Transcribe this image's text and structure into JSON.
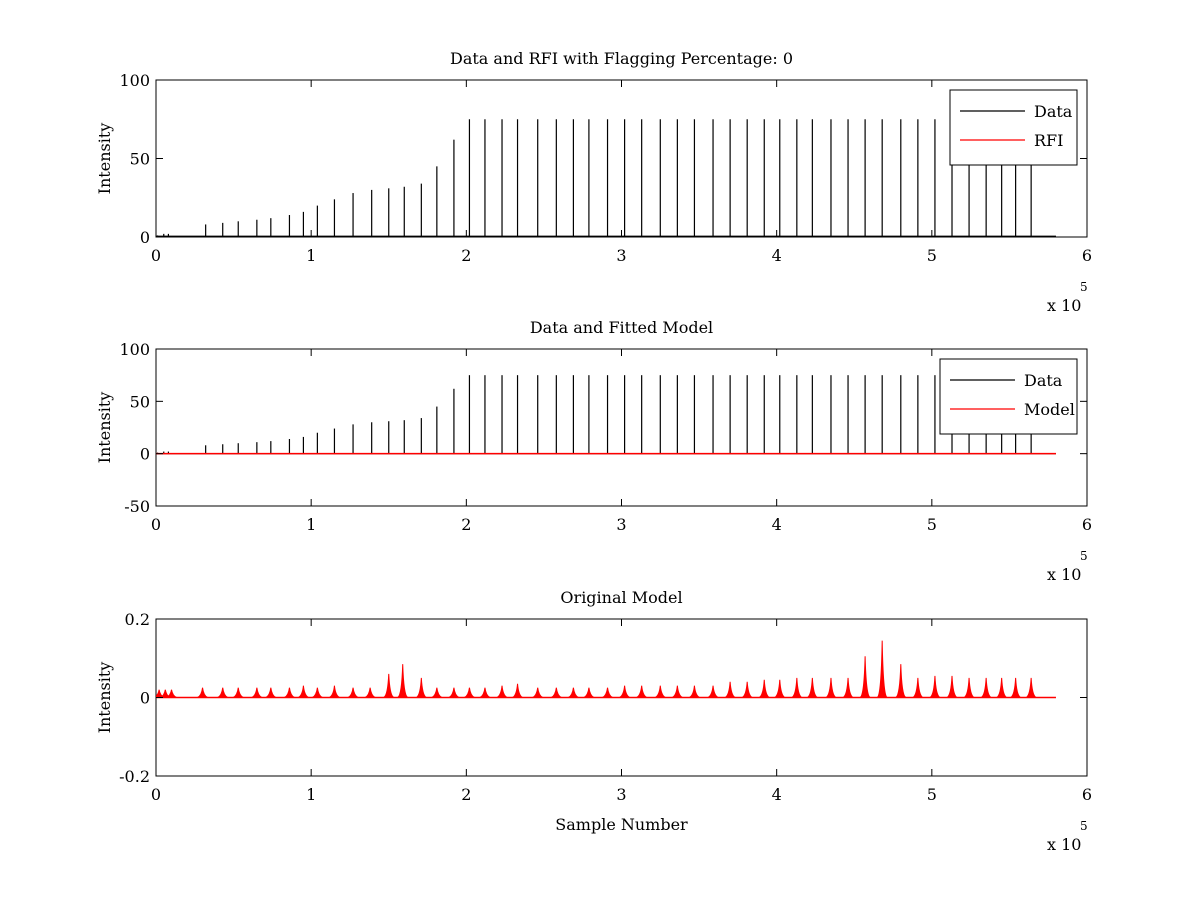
{
  "chart_data": [
    {
      "type": "line",
      "title": "Data and RFI with Flagging Percentage: 0",
      "xlabel": "",
      "ylabel": "Intensity",
      "xlim": [
        0,
        6
      ],
      "ylim": [
        0,
        100
      ],
      "xticks": [
        "0",
        "1",
        "2",
        "3",
        "4",
        "5",
        "6"
      ],
      "yticks": [
        "0",
        "50",
        "100"
      ],
      "ytick_values": [
        0,
        50,
        100
      ],
      "x_multiplier": {
        "text": "x 10",
        "exponent": "5"
      },
      "legend": {
        "position": "top-right",
        "entries": [
          {
            "label": "Data",
            "color": "#000000"
          },
          {
            "label": "RFI",
            "color": "#ff0000"
          }
        ]
      },
      "series": [
        {
          "name": "Data",
          "color": "#000000",
          "spikes": {
            "x": [
              0.01,
              0.05,
              0.08,
              0.32,
              0.43,
              0.53,
              0.65,
              0.74,
              0.86,
              0.95,
              1.04,
              1.15,
              1.27,
              1.39,
              1.5,
              1.6,
              1.71,
              1.81,
              1.92,
              2.02,
              2.12,
              2.23,
              2.33,
              2.46,
              2.58,
              2.69,
              2.79,
              2.91,
              3.02,
              3.13,
              3.25,
              3.36,
              3.47,
              3.59,
              3.7,
              3.81,
              3.92,
              4.02,
              4.13,
              4.23,
              4.35,
              4.46,
              4.57,
              4.68,
              4.8,
              4.91,
              5.02,
              5.13,
              5.24,
              5.35,
              5.45,
              5.54,
              5.64
            ],
            "y": [
              1,
              2,
              2,
              8,
              9,
              10,
              11,
              12,
              14,
              16,
              20,
              24,
              28,
              30,
              31,
              32,
              34,
              45,
              62,
              75,
              75,
              75,
              75,
              75,
              75,
              75,
              75,
              75,
              75,
              75,
              75,
              75,
              75,
              75,
              75,
              75,
              75,
              75,
              75,
              75,
              75,
              75,
              75,
              75,
              75,
              75,
              75,
              75,
              75,
              75,
              75,
              75,
              75
            ]
          },
          "baseline": {
            "x": [
              0,
              5.8
            ],
            "y": [
              0.5,
              0.5
            ]
          }
        },
        {
          "name": "RFI",
          "color": "#ff0000",
          "values": []
        }
      ]
    },
    {
      "type": "line",
      "title": "Data and Fitted Model",
      "xlabel": "",
      "ylabel": "Intensity",
      "xlim": [
        0,
        6
      ],
      "ylim": [
        -50,
        100
      ],
      "xticks": [
        "0",
        "1",
        "2",
        "3",
        "4",
        "5",
        "6"
      ],
      "yticks": [
        "-50",
        "0",
        "50",
        "100"
      ],
      "ytick_values": [
        -50,
        0,
        50,
        100
      ],
      "x_multiplier": {
        "text": "x 10",
        "exponent": "5"
      },
      "legend": {
        "position": "top-right",
        "entries": [
          {
            "label": "Data",
            "color": "#000000"
          },
          {
            "label": "Model",
            "color": "#ff0000"
          }
        ]
      },
      "series": [
        {
          "name": "Data",
          "color": "#000000",
          "spikes": {
            "x": [
              0.01,
              0.05,
              0.08,
              0.32,
              0.43,
              0.53,
              0.65,
              0.74,
              0.86,
              0.95,
              1.04,
              1.15,
              1.27,
              1.39,
              1.5,
              1.6,
              1.71,
              1.81,
              1.92,
              2.02,
              2.12,
              2.23,
              2.33,
              2.46,
              2.58,
              2.69,
              2.79,
              2.91,
              3.02,
              3.13,
              3.25,
              3.36,
              3.47,
              3.59,
              3.7,
              3.81,
              3.92,
              4.02,
              4.13,
              4.23,
              4.35,
              4.46,
              4.57,
              4.68,
              4.8,
              4.91,
              5.02,
              5.13,
              5.24,
              5.35,
              5.45,
              5.54,
              5.64
            ],
            "y": [
              1,
              2,
              2,
              8,
              9,
              10,
              11,
              12,
              14,
              16,
              20,
              24,
              28,
              30,
              31,
              32,
              34,
              45,
              62,
              75,
              75,
              75,
              75,
              75,
              75,
              75,
              75,
              75,
              75,
              75,
              75,
              75,
              75,
              75,
              75,
              75,
              75,
              75,
              75,
              75,
              75,
              75,
              75,
              75,
              75,
              75,
              75,
              75,
              75,
              75,
              75,
              75,
              75
            ]
          },
          "baseline": {
            "x": [
              0,
              5.8
            ],
            "y": [
              0,
              0
            ]
          }
        },
        {
          "name": "Model",
          "color": "#ff0000",
          "baseline": {
            "x": [
              0,
              5.8
            ],
            "y": [
              0,
              0
            ]
          }
        }
      ]
    },
    {
      "type": "line",
      "title": "Original Model",
      "xlabel": "Sample Number",
      "ylabel": "Intensity",
      "xlim": [
        0,
        6
      ],
      "ylim": [
        -0.2,
        0.2
      ],
      "xticks": [
        "0",
        "1",
        "2",
        "3",
        "4",
        "5",
        "6"
      ],
      "yticks": [
        "-0.2",
        "0",
        "0.2"
      ],
      "ytick_values": [
        -0.2,
        0,
        0.2
      ],
      "x_multiplier": {
        "text": "x 10",
        "exponent": "5"
      },
      "series": [
        {
          "name": "",
          "color": "#ff0000",
          "bumps": {
            "x": [
              0.02,
              0.06,
              0.1,
              0.3,
              0.43,
              0.53,
              0.65,
              0.74,
              0.86,
              0.95,
              1.04,
              1.15,
              1.27,
              1.38,
              1.5,
              1.59,
              1.71,
              1.81,
              1.92,
              2.02,
              2.12,
              2.23,
              2.33,
              2.46,
              2.58,
              2.69,
              2.79,
              2.91,
              3.02,
              3.13,
              3.25,
              3.36,
              3.47,
              3.59,
              3.7,
              3.81,
              3.92,
              4.02,
              4.13,
              4.23,
              4.35,
              4.46,
              4.57,
              4.68,
              4.8,
              4.91,
              5.02,
              5.13,
              5.24,
              5.35,
              5.45,
              5.54,
              5.64
            ],
            "y": [
              0.02,
              0.02,
              0.02,
              0.025,
              0.025,
              0.025,
              0.025,
              0.025,
              0.025,
              0.03,
              0.025,
              0.03,
              0.025,
              0.025,
              0.06,
              0.085,
              0.05,
              0.025,
              0.025,
              0.025,
              0.025,
              0.03,
              0.035,
              0.025,
              0.025,
              0.025,
              0.025,
              0.025,
              0.03,
              0.03,
              0.03,
              0.03,
              0.03,
              0.03,
              0.04,
              0.04,
              0.045,
              0.045,
              0.05,
              0.05,
              0.05,
              0.05,
              0.105,
              0.145,
              0.085,
              0.05,
              0.055,
              0.055,
              0.05,
              0.05,
              0.05,
              0.05,
              0.05
            ]
          },
          "baseline": {
            "x": [
              0,
              5.8
            ],
            "y": [
              0,
              0
            ]
          }
        }
      ]
    }
  ]
}
